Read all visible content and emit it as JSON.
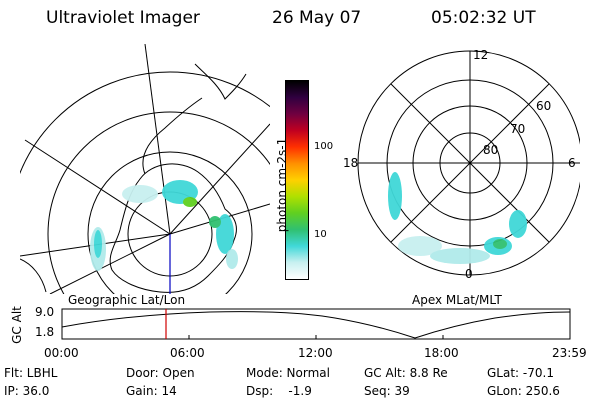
{
  "header": {
    "instrument": "Ultraviolet Imager",
    "date": "26 May 07",
    "time": "05:02:32 UT"
  },
  "colorbar": {
    "unit_label": "photon cm-2s-1",
    "ticks": [
      "100",
      "10"
    ],
    "colors": [
      "#ffffff",
      "#c8f0f0",
      "#40d8d8",
      "#30c070",
      "#60d020",
      "#b0e000",
      "#ffd000",
      "#ff9000",
      "#ff3000",
      "#c00020",
      "#700040",
      "#300040",
      "#000000"
    ]
  },
  "geo_panel": {
    "label": "Geographic Lat/Lon"
  },
  "mag_panel": {
    "label": "Apex MLat/MLT",
    "mlt_labels": [
      "12",
      "18",
      "6",
      "0"
    ],
    "lat_labels": [
      "60",
      "70",
      "80"
    ]
  },
  "altitude_plot": {
    "ylabel": "GC Alt",
    "yticks": [
      "9.0",
      "1.8"
    ],
    "xticks": [
      "00:00",
      "06:00",
      "12:00",
      "18:00",
      "23:59"
    ]
  },
  "info": {
    "flt": "Flt: LBHL",
    "ip": "IP: 36.0",
    "door": "Door: Open",
    "gain": "Gain: 14",
    "mode": "Mode: Normal",
    "dsp": "Dsp:    -1.9",
    "gcalt": "GC Alt: 8.8 Re",
    "seq": "Seq: 39",
    "glat": "GLat: -70.1",
    "glon": "GLon: 250.6"
  }
}
